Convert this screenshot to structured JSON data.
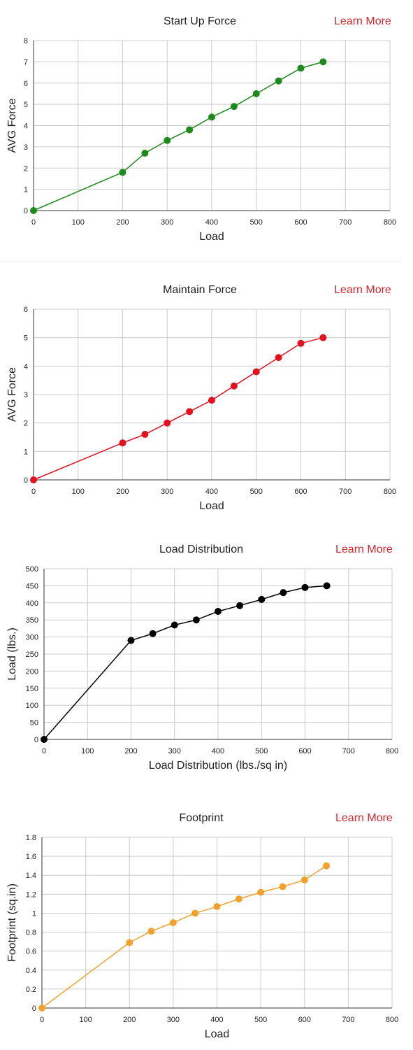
{
  "learn_more_label": "Learn More",
  "chart_data": [
    {
      "type": "line",
      "title": "Start Up Force",
      "xlabel": "Load",
      "ylabel": "AVG Force",
      "x": [
        0,
        200,
        250,
        300,
        350,
        400,
        450,
        500,
        550,
        600,
        650
      ],
      "series": [
        {
          "values": [
            0,
            1.8,
            2.7,
            3.3,
            3.8,
            4.4,
            4.9,
            5.5,
            6.1,
            6.7,
            7.0
          ]
        }
      ],
      "xlim": [
        0,
        800
      ],
      "ylim": [
        0,
        8
      ],
      "xticks": [
        0,
        100,
        200,
        300,
        400,
        500,
        600,
        700,
        800
      ],
      "yticks": [
        0,
        1,
        2,
        3,
        4,
        5,
        6,
        7,
        8
      ],
      "color": "#1e8a1e",
      "grid": true
    },
    {
      "type": "line",
      "title": "Maintain Force",
      "xlabel": "Load",
      "ylabel": "AVG Force",
      "x": [
        0,
        200,
        250,
        300,
        350,
        400,
        450,
        500,
        550,
        600,
        650
      ],
      "series": [
        {
          "values": [
            0,
            1.3,
            1.6,
            2.0,
            2.4,
            2.8,
            3.3,
            3.8,
            4.3,
            4.8,
            5.0
          ]
        }
      ],
      "xlim": [
        0,
        800
      ],
      "ylim": [
        0,
        6
      ],
      "xticks": [
        0,
        100,
        200,
        300,
        400,
        500,
        600,
        700,
        800
      ],
      "yticks": [
        0,
        1,
        2,
        3,
        4,
        5,
        6
      ],
      "color": "#e3101f",
      "grid": true
    },
    {
      "type": "line",
      "title": "Load Distribution",
      "xlabel": "Load Distribution (lbs./sq in)",
      "ylabel": "Load (lbs.)",
      "x": [
        0,
        200,
        250,
        300,
        350,
        400,
        450,
        500,
        550,
        600,
        650
      ],
      "series": [
        {
          "values": [
            0,
            290,
            310,
            335,
            350,
            375,
            392,
            410,
            430,
            445,
            450
          ]
        }
      ],
      "xlim": [
        0,
        800
      ],
      "ylim": [
        0,
        500
      ],
      "xticks": [
        0,
        100,
        200,
        300,
        400,
        500,
        600,
        700,
        800
      ],
      "yticks": [
        0,
        50,
        100,
        150,
        200,
        250,
        300,
        350,
        400,
        450,
        500
      ],
      "color": "#000000",
      "grid": true
    },
    {
      "type": "line",
      "title": "Footprint",
      "xlabel": "Load",
      "ylabel": "Footprint (sq.in)",
      "x": [
        0,
        200,
        250,
        300,
        350,
        400,
        450,
        500,
        550,
        600,
        650
      ],
      "series": [
        {
          "values": [
            0,
            0.69,
            0.81,
            0.9,
            1.0,
            1.07,
            1.15,
            1.22,
            1.28,
            1.35,
            1.5
          ]
        }
      ],
      "xlim": [
        0,
        800
      ],
      "ylim": [
        0,
        1.8
      ],
      "xticks": [
        0,
        100,
        200,
        300,
        400,
        500,
        600,
        700,
        800
      ],
      "yticks": [
        0,
        0.2,
        0.4,
        0.6,
        0.8,
        1,
        1.2,
        1.4,
        1.6,
        1.8
      ],
      "color": "#f2a22c",
      "grid": true
    }
  ]
}
